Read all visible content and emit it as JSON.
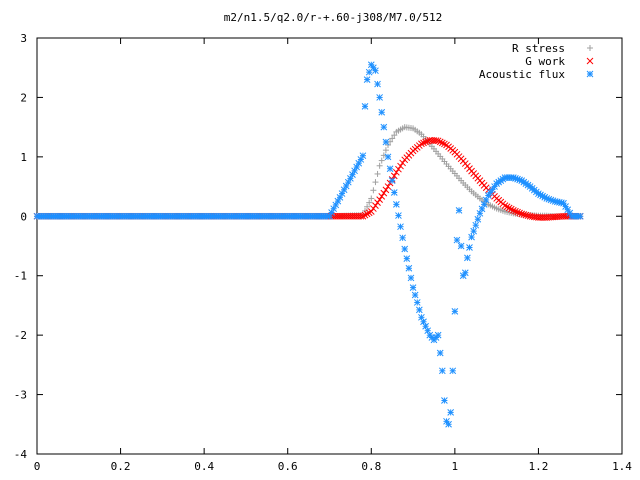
{
  "chart_data": {
    "type": "scatter",
    "title": "m2/n1.5/q2.0/r-+.60-j308/M7.0/512",
    "xlabel": "",
    "ylabel": "",
    "xlim": [
      0,
      1.4
    ],
    "ylim": [
      -4,
      3
    ],
    "x_ticks": [
      0,
      0.2,
      0.4,
      0.6,
      0.8,
      1,
      1.2,
      1.4
    ],
    "x_tick_labels": [
      "0",
      "0.2",
      "0.4",
      "0.6",
      "0.8",
      "1",
      "1.2",
      "1.4"
    ],
    "y_ticks": [
      -4,
      -3,
      -2,
      -1,
      0,
      1,
      2,
      3
    ],
    "y_tick_labels": [
      "-4",
      "-3",
      "-2",
      "-1",
      "0",
      "1",
      "2",
      "3"
    ],
    "grid": false,
    "legend_position": "top-right",
    "series": [
      {
        "name": "R stress",
        "marker": "plus",
        "color": "#a0a0a0",
        "x": [
          0.0,
          0.1,
          0.2,
          0.3,
          0.4,
          0.5,
          0.6,
          0.7,
          0.78,
          0.8,
          0.82,
          0.84,
          0.86,
          0.88,
          0.9,
          0.92,
          0.94,
          0.96,
          0.98,
          1.0,
          1.02,
          1.04,
          1.06,
          1.08,
          1.1,
          1.12,
          1.14,
          1.16,
          1.18,
          1.2,
          1.22,
          1.24,
          1.26,
          1.28,
          1.3
        ],
        "y": [
          0,
          0,
          0,
          0,
          0,
          0,
          0,
          0,
          0.02,
          0.3,
          0.85,
          1.2,
          1.42,
          1.5,
          1.48,
          1.38,
          1.22,
          1.05,
          0.88,
          0.72,
          0.56,
          0.42,
          0.3,
          0.2,
          0.13,
          0.08,
          0.05,
          0.03,
          0.02,
          0.01,
          0.01,
          0.0,
          0.0,
          0.0,
          0.0
        ]
      },
      {
        "name": "G work",
        "marker": "cross",
        "color": "#ff0000",
        "x": [
          0.0,
          0.1,
          0.2,
          0.3,
          0.4,
          0.5,
          0.6,
          0.7,
          0.78,
          0.8,
          0.82,
          0.84,
          0.86,
          0.88,
          0.9,
          0.92,
          0.94,
          0.96,
          0.98,
          1.0,
          1.02,
          1.04,
          1.06,
          1.08,
          1.1,
          1.12,
          1.14,
          1.16,
          1.18,
          1.2,
          1.22,
          1.24,
          1.26,
          1.28,
          1.3
        ],
        "y": [
          0,
          0,
          0,
          0,
          0,
          0,
          0,
          0,
          0.0,
          0.08,
          0.28,
          0.5,
          0.74,
          0.95,
          1.1,
          1.22,
          1.28,
          1.27,
          1.2,
          1.08,
          0.93,
          0.76,
          0.6,
          0.44,
          0.3,
          0.18,
          0.1,
          0.04,
          0.0,
          -0.02,
          -0.02,
          -0.01,
          0.0,
          0.0,
          0.0
        ]
      },
      {
        "name": "Acoustic flux",
        "marker": "star",
        "color": "#1e90ff",
        "x": [
          0.0,
          0.1,
          0.2,
          0.3,
          0.4,
          0.5,
          0.6,
          0.7,
          0.78,
          0.785,
          0.79,
          0.8,
          0.81,
          0.82,
          0.84,
          0.86,
          0.88,
          0.9,
          0.92,
          0.94,
          0.95,
          0.96,
          0.97,
          0.975,
          0.98,
          0.985,
          0.99,
          0.995,
          1.0,
          1.005,
          1.01,
          1.015,
          1.02,
          1.025,
          1.03,
          1.04,
          1.06,
          1.08,
          1.1,
          1.12,
          1.14,
          1.16,
          1.18,
          1.2,
          1.22,
          1.24,
          1.26,
          1.28,
          1.3
        ],
        "y": [
          0,
          0,
          0,
          0,
          0,
          0,
          0,
          0,
          1.02,
          1.85,
          2.3,
          2.55,
          2.45,
          2.0,
          1.0,
          0.2,
          -0.55,
          -1.2,
          -1.7,
          -2.0,
          -2.08,
          -2.0,
          -2.6,
          -3.1,
          -3.45,
          -3.5,
          -3.3,
          -2.6,
          -1.6,
          -0.4,
          0.1,
          -0.5,
          -1.0,
          -0.95,
          -0.7,
          -0.35,
          0.05,
          0.35,
          0.55,
          0.65,
          0.65,
          0.6,
          0.5,
          0.38,
          0.3,
          0.25,
          0.22,
          0.0,
          0.0
        ]
      }
    ]
  }
}
